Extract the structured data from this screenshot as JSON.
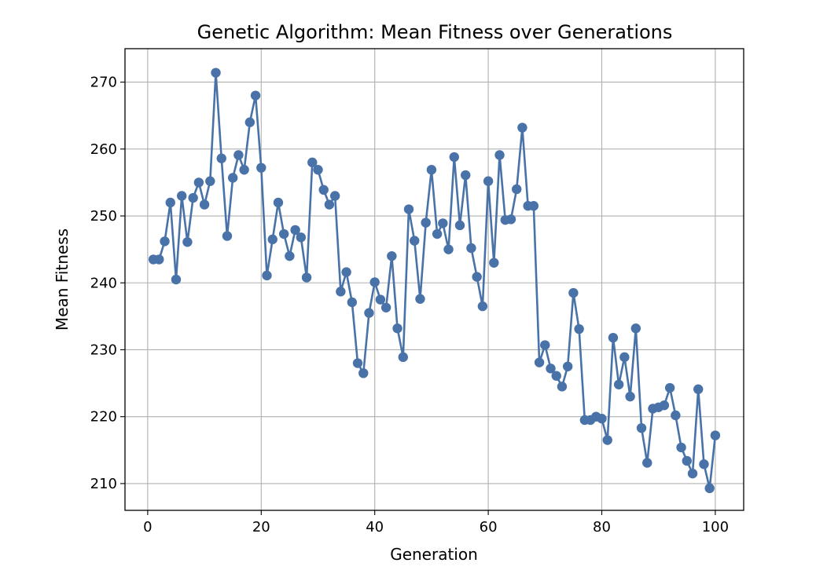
{
  "chart_data": {
    "type": "line",
    "title": "Genetic Algorithm: Mean Fitness over Generations",
    "xlabel": "Generation",
    "ylabel": "Mean Fitness",
    "xlim": [
      -4,
      105
    ],
    "ylim": [
      206,
      275
    ],
    "xticks": [
      0,
      20,
      40,
      60,
      80,
      100
    ],
    "yticks": [
      210,
      220,
      230,
      240,
      250,
      260,
      270
    ],
    "grid": true,
    "marker": "circle",
    "color": "#4872a8",
    "series": [
      {
        "x": [
          1,
          2,
          3,
          4,
          5,
          6,
          7,
          8,
          9,
          10,
          11,
          12,
          13,
          14,
          15,
          16,
          17,
          18,
          19,
          20,
          21,
          22,
          23,
          24,
          25,
          26,
          27,
          28,
          29,
          30,
          31,
          32,
          33,
          34,
          35,
          36,
          37,
          38,
          39,
          40,
          41,
          42,
          43,
          44,
          45,
          46,
          47,
          48,
          49,
          50,
          51,
          52,
          53,
          54,
          55,
          56,
          57,
          58,
          59,
          60,
          61,
          62,
          63,
          64,
          65,
          66,
          67,
          68,
          69,
          70,
          71,
          72,
          73,
          74,
          75,
          76,
          77,
          78,
          79,
          80,
          81,
          82,
          83,
          84,
          85,
          86,
          87,
          88,
          89,
          90,
          91,
          92,
          93,
          94,
          95,
          96,
          97,
          98,
          99,
          100
        ],
        "values": [
          243.5,
          243.5,
          246.2,
          252.0,
          240.5,
          253.0,
          246.1,
          252.7,
          255.0,
          251.7,
          255.2,
          271.4,
          258.6,
          247.0,
          255.7,
          259.1,
          256.9,
          264.0,
          268.0,
          257.2,
          241.1,
          246.5,
          252.0,
          247.3,
          244.0,
          247.9,
          246.8,
          240.8,
          258.0,
          256.9,
          253.9,
          251.7,
          253.0,
          238.7,
          241.6,
          237.1,
          228.0,
          226.5,
          235.5,
          240.1,
          237.5,
          236.3,
          244.0,
          233.2,
          228.9,
          251.0,
          246.3,
          237.6,
          249.0,
          256.9,
          247.3,
          248.9,
          245.0,
          258.8,
          248.6,
          256.1,
          245.2,
          240.9,
          236.5,
          255.2,
          243.0,
          259.1,
          249.4,
          249.5,
          254.0,
          263.2,
          251.5,
          251.5,
          228.1,
          230.7,
          227.2,
          226.1,
          224.5,
          227.5,
          238.5,
          233.1,
          219.5,
          219.5,
          220.0,
          219.7,
          216.5,
          231.8,
          224.8,
          228.9,
          223.0,
          233.2,
          218.3,
          213.1,
          221.2,
          221.4,
          221.7,
          224.3,
          220.2,
          215.4,
          213.4,
          211.5,
          224.1,
          212.9,
          209.3,
          217.2
        ]
      }
    ]
  }
}
